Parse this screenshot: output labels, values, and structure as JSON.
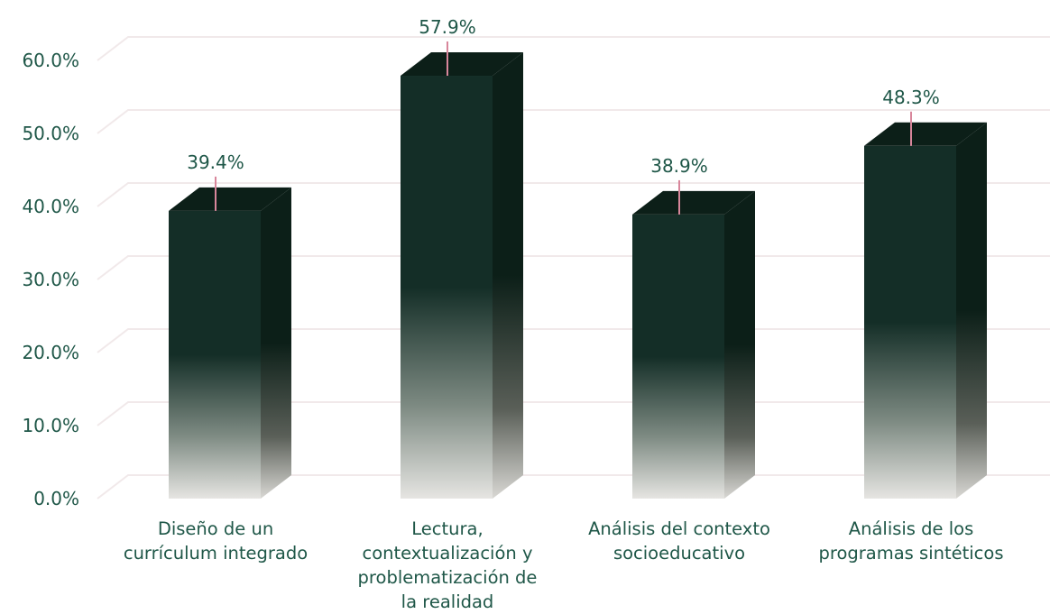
{
  "chart_data": {
    "type": "bar",
    "categories": [
      "Diseño de un currículum integrado",
      "Lectura, contextualización y problematización de la realidad",
      "Análisis del contexto socioeducativo",
      "Análisis de los programas sintéticos"
    ],
    "category_lines": [
      [
        "Diseño de un",
        "currículum integrado"
      ],
      [
        "Lectura,",
        "contextualización y",
        "problematización de",
        "la realidad"
      ],
      [
        "Análisis del contexto",
        "socioeducativo"
      ],
      [
        "Análisis de los",
        "programas sintéticos"
      ]
    ],
    "values": [
      39.4,
      57.9,
      38.9,
      48.3
    ],
    "value_labels": [
      "39.4%",
      "57.9%",
      "38.9%",
      "48.3%"
    ],
    "ylim": [
      0,
      60
    ],
    "yticks": [
      0,
      10,
      20,
      30,
      40,
      50,
      60
    ],
    "ytick_labels": [
      "0.0%",
      "10.0%",
      "20.0%",
      "30.0%",
      "40.0%",
      "50.0%",
      "60.0%"
    ],
    "title": "",
    "xlabel": "",
    "ylabel": "",
    "grid": true,
    "legend": "none",
    "colors": {
      "bar_top": "#142e27",
      "bar_side": "#0c1f18",
      "bar_fade": "#e6e5e2",
      "text": "#1f5748",
      "grid": "#f1e9ea",
      "leader": "#d8869b"
    }
  }
}
